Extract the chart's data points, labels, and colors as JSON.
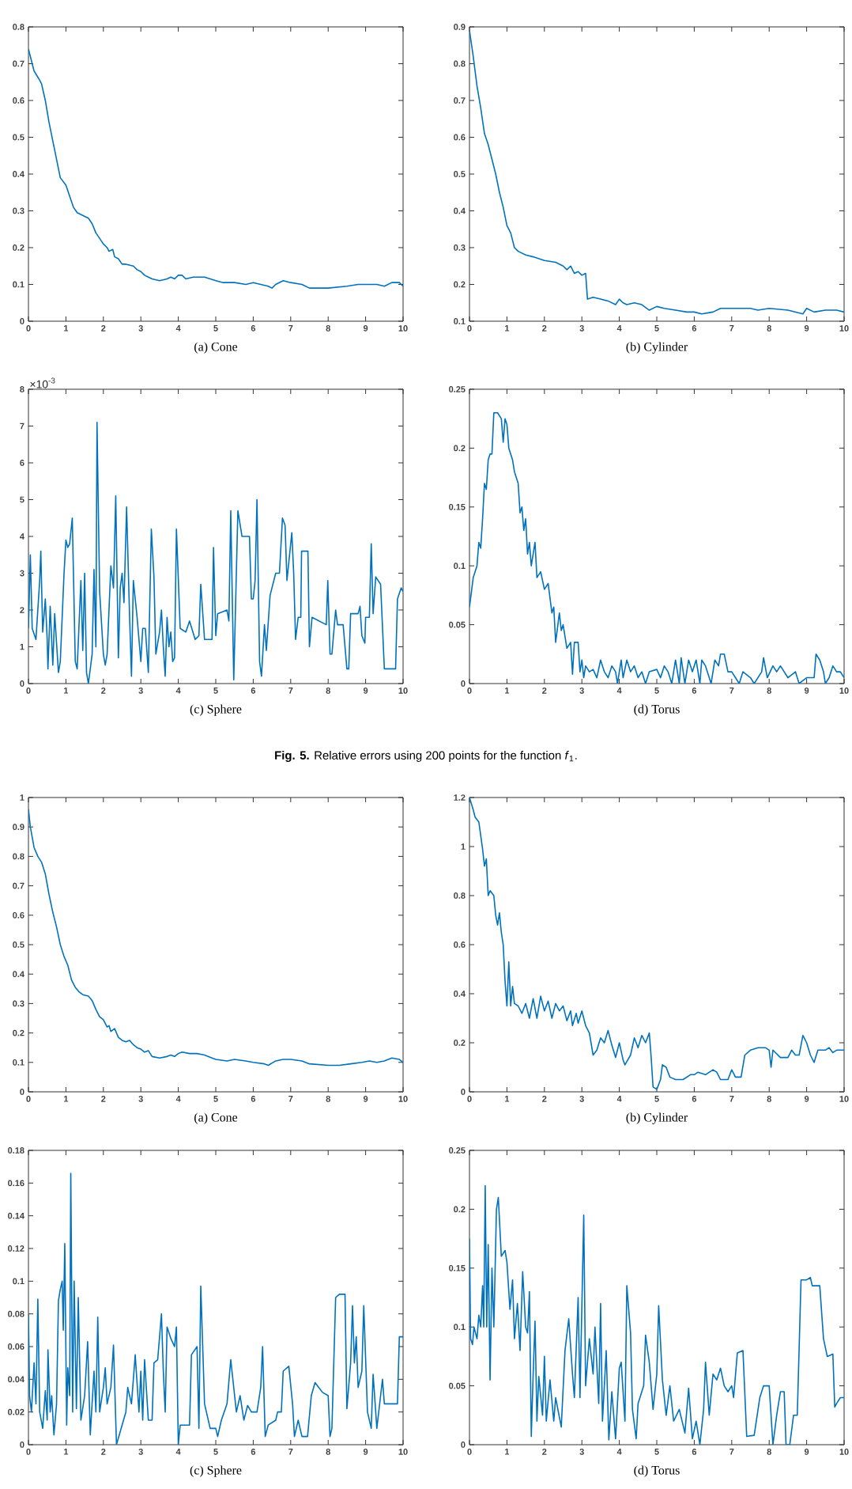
{
  "chart_data": [
    {
      "type": "line",
      "xlabel": "(a) Cone",
      "color": "#0072bd",
      "xlim": [
        0,
        10
      ],
      "ylim": [
        0,
        0.8
      ],
      "xticks": [
        0,
        1,
        2,
        3,
        4,
        5,
        6,
        7,
        8,
        9,
        10
      ],
      "yticks": [
        0,
        0.1,
        0.2,
        0.3,
        0.4,
        0.5,
        0.6,
        0.7,
        0.8
      ],
      "x": [
        0,
        0.05,
        0.15,
        0.3,
        0.35,
        0.45,
        0.55,
        0.65,
        0.75,
        0.85,
        1.0,
        1.1,
        1.2,
        1.3,
        1.4,
        1.5,
        1.6,
        1.7,
        1.8,
        1.9,
        2.0,
        2.1,
        2.15,
        2.25,
        2.3,
        2.4,
        2.5,
        2.6,
        2.8,
        2.9,
        3.0,
        3.1,
        3.2,
        3.3,
        3.5,
        3.7,
        3.8,
        3.9,
        4.0,
        4.1,
        4.2,
        4.4,
        4.7,
        5.0,
        5.2,
        5.5,
        5.8,
        6.0,
        6.2,
        6.4,
        6.5,
        6.6,
        6.8,
        7.0,
        7.3,
        7.5,
        8.0,
        8.5,
        8.8,
        9.0,
        9.3,
        9.5,
        9.7,
        9.9,
        10
      ],
      "values": [
        0.74,
        0.72,
        0.68,
        0.655,
        0.645,
        0.6,
        0.54,
        0.49,
        0.44,
        0.39,
        0.37,
        0.34,
        0.31,
        0.295,
        0.29,
        0.285,
        0.28,
        0.265,
        0.24,
        0.225,
        0.21,
        0.2,
        0.19,
        0.195,
        0.175,
        0.17,
        0.155,
        0.155,
        0.15,
        0.14,
        0.135,
        0.125,
        0.12,
        0.115,
        0.11,
        0.115,
        0.12,
        0.115,
        0.125,
        0.125,
        0.115,
        0.12,
        0.12,
        0.11,
        0.105,
        0.105,
        0.1,
        0.105,
        0.1,
        0.095,
        0.09,
        0.1,
        0.11,
        0.105,
        0.1,
        0.09,
        0.09,
        0.095,
        0.1,
        0.1,
        0.1,
        0.095,
        0.105,
        0.105,
        0.095
      ]
    },
    {
      "type": "line",
      "xlabel": "(b) Cylinder",
      "color": "#0072bd",
      "xlim": [
        0,
        10
      ],
      "ylim": [
        0.1,
        0.9
      ],
      "xticks": [
        0,
        1,
        2,
        3,
        4,
        5,
        6,
        7,
        8,
        9,
        10
      ],
      "yticks": [
        0.1,
        0.2,
        0.3,
        0.4,
        0.5,
        0.6,
        0.7,
        0.8,
        0.9
      ],
      "x": [
        0,
        0.1,
        0.2,
        0.3,
        0.4,
        0.5,
        0.6,
        0.7,
        0.8,
        0.9,
        1.0,
        1.1,
        1.2,
        1.3,
        1.5,
        1.7,
        2.0,
        2.3,
        2.5,
        2.6,
        2.7,
        2.8,
        2.9,
        3.0,
        3.1,
        3.15,
        3.3,
        3.5,
        3.7,
        3.9,
        4.0,
        4.1,
        4.2,
        4.4,
        4.6,
        4.8,
        5.0,
        5.2,
        5.5,
        5.8,
        6.0,
        6.2,
        6.5,
        6.7,
        7.0,
        7.5,
        7.7,
        8.0,
        8.5,
        8.9,
        9.0,
        9.2,
        9.5,
        9.8,
        10
      ],
      "values": [
        0.89,
        0.82,
        0.74,
        0.68,
        0.61,
        0.58,
        0.54,
        0.5,
        0.45,
        0.41,
        0.36,
        0.34,
        0.3,
        0.29,
        0.28,
        0.275,
        0.265,
        0.26,
        0.25,
        0.24,
        0.25,
        0.23,
        0.235,
        0.225,
        0.23,
        0.16,
        0.165,
        0.16,
        0.155,
        0.145,
        0.16,
        0.15,
        0.145,
        0.15,
        0.145,
        0.13,
        0.14,
        0.135,
        0.13,
        0.125,
        0.125,
        0.12,
        0.125,
        0.135,
        0.135,
        0.135,
        0.13,
        0.135,
        0.13,
        0.12,
        0.135,
        0.125,
        0.13,
        0.13,
        0.125
      ]
    },
    {
      "type": "line",
      "xlabel": "(c) Sphere",
      "color": "#0072bd",
      "xlim": [
        0,
        10
      ],
      "ylim": [
        0,
        8
      ],
      "xticks": [
        0,
        1,
        2,
        3,
        4,
        5,
        6,
        7,
        8,
        9,
        10
      ],
      "yticks": [
        0,
        1,
        2,
        3,
        4,
        5,
        6,
        7,
        8
      ],
      "annotations": [
        "×10$^{-3}$"
      ],
      "x": [
        0,
        0.05,
        0.1,
        0.2,
        0.3,
        0.33,
        0.38,
        0.45,
        0.5,
        0.52,
        0.58,
        0.65,
        0.7,
        0.8,
        0.85,
        0.95,
        1.0,
        1.05,
        1.1,
        1.17,
        1.25,
        1.3,
        1.4,
        1.45,
        1.5,
        1.55,
        1.6,
        1.7,
        1.75,
        1.8,
        1.83,
        1.9,
        2.0,
        2.05,
        2.1,
        2.2,
        2.27,
        2.33,
        2.4,
        2.45,
        2.5,
        2.55,
        2.62,
        2.7,
        2.75,
        2.8,
        2.9,
        3.0,
        3.05,
        3.12,
        3.2,
        3.28,
        3.35,
        3.4,
        3.5,
        3.55,
        3.6,
        3.65,
        3.7,
        3.75,
        3.8,
        3.85,
        3.9,
        3.95,
        4.05,
        4.2,
        4.3,
        4.45,
        4.55,
        4.6,
        4.7,
        4.9,
        4.94,
        5.0,
        5.05,
        5.3,
        5.35,
        5.4,
        5.48,
        5.59,
        5.7,
        5.9,
        5.95,
        6.0,
        6.05,
        6.1,
        6.17,
        6.22,
        6.3,
        6.35,
        6.45,
        6.6,
        6.7,
        6.78,
        6.85,
        6.9,
        7.03,
        7.08,
        7.13,
        7.2,
        7.27,
        7.29,
        7.46,
        7.5,
        7.57,
        7.95,
        7.99,
        8.05,
        8.1,
        8.2,
        8.25,
        8.4,
        8.5,
        8.55,
        8.6,
        8.8,
        8.85,
        8.9,
        8.98,
        9.0,
        9.1,
        9.15,
        9.2,
        9.27,
        9.4,
        9.5,
        9.8,
        9.85,
        9.95,
        10
      ],
      "values": [
        1.5,
        3.5,
        1.5,
        1.2,
        2.8,
        3.6,
        1.4,
        2.3,
        1.2,
        0.4,
        2.1,
        0.5,
        1.9,
        0.3,
        0.6,
        3.0,
        3.9,
        3.7,
        3.8,
        4.5,
        0.6,
        0.4,
        2.8,
        0.9,
        3.0,
        0.3,
        0.0,
        0.8,
        3.1,
        1.0,
        7.1,
        2.5,
        0.8,
        0.5,
        0.8,
        3.2,
        2.6,
        5.1,
        0.7,
        2.6,
        3.0,
        2.2,
        4.8,
        1.8,
        0.2,
        2.8,
        1.8,
        0.6,
        1.5,
        1.5,
        0.3,
        4.2,
        2.9,
        0.8,
        1.4,
        2.0,
        1.0,
        0.2,
        1.8,
        1.0,
        1.4,
        0.6,
        0.7,
        4.2,
        1.5,
        1.4,
        1.7,
        1.2,
        1.3,
        2.7,
        1.2,
        1.2,
        3.7,
        1.3,
        1.9,
        2.0,
        1.7,
        4.7,
        0.1,
        4.7,
        4.0,
        4.0,
        2.3,
        2.3,
        2.8,
        5.0,
        0.6,
        0.2,
        1.6,
        0.9,
        2.4,
        3.0,
        3.0,
        4.5,
        4.3,
        2.8,
        4.1,
        3.0,
        1.2,
        1.8,
        1.8,
        3.6,
        3.6,
        1.0,
        1.8,
        1.6,
        2.8,
        0.8,
        0.8,
        2.0,
        1.6,
        1.6,
        0.4,
        0.4,
        1.9,
        1.9,
        2.1,
        1.3,
        1.1,
        1.8,
        1.8,
        3.8,
        1.9,
        2.9,
        2.7,
        0.4,
        0.4,
        2.3,
        2.6,
        2.5
      ]
    },
    {
      "type": "line",
      "xlabel": "(d) Torus",
      "color": "#0072bd",
      "xlim": [
        0,
        10
      ],
      "ylim": [
        0,
        0.25
      ],
      "xticks": [
        0,
        1,
        2,
        3,
        4,
        5,
        6,
        7,
        8,
        9,
        10
      ],
      "yticks": [
        0,
        0.05,
        0.1,
        0.15,
        0.2,
        0.25
      ],
      "annotations": [
        "**Fig. 5.** Relative errors using 200 points for the function *f*$_{1}$."
      ],
      "x": [
        0,
        0.1,
        0.2,
        0.25,
        0.3,
        0.35,
        0.4,
        0.45,
        0.5,
        0.55,
        0.6,
        0.65,
        0.75,
        0.85,
        0.9,
        0.95,
        1.0,
        1.05,
        1.15,
        1.2,
        1.3,
        1.35,
        1.4,
        1.45,
        1.5,
        1.55,
        1.6,
        1.65,
        1.75,
        1.8,
        1.9,
        2.0,
        2.1,
        2.2,
        2.25,
        2.3,
        2.4,
        2.45,
        2.5,
        2.6,
        2.7,
        2.75,
        2.8,
        2.9,
        2.95,
        3.0,
        3.05,
        3.1,
        3.2,
        3.3,
        3.4,
        3.5,
        3.6,
        3.7,
        3.8,
        3.9,
        3.95,
        4.05,
        4.1,
        4.2,
        4.3,
        4.4,
        4.5,
        4.6,
        4.7,
        4.8,
        5.0,
        5.1,
        5.2,
        5.3,
        5.4,
        5.5,
        5.6,
        5.65,
        5.75,
        5.85,
        5.95,
        6.05,
        6.15,
        6.2,
        6.3,
        6.45,
        6.55,
        6.65,
        6.7,
        6.8,
        6.9,
        7.0,
        7.1,
        7.2,
        7.3,
        7.5,
        7.6,
        7.7,
        7.8,
        7.85,
        7.95,
        8.1,
        8.2,
        8.3,
        8.4,
        8.5,
        8.7,
        8.8,
        9.0,
        9.2,
        9.25,
        9.35,
        9.45,
        9.5,
        9.6,
        9.7,
        9.8,
        9.9,
        10
      ],
      "values": [
        0.065,
        0.09,
        0.1,
        0.12,
        0.115,
        0.14,
        0.17,
        0.165,
        0.19,
        0.195,
        0.195,
        0.23,
        0.23,
        0.225,
        0.205,
        0.225,
        0.22,
        0.2,
        0.19,
        0.18,
        0.17,
        0.145,
        0.15,
        0.13,
        0.14,
        0.11,
        0.12,
        0.1,
        0.12,
        0.09,
        0.095,
        0.08,
        0.085,
        0.06,
        0.065,
        0.035,
        0.06,
        0.045,
        0.05,
        0.03,
        0.035,
        0.008,
        0.035,
        0.035,
        0.01,
        0.02,
        0.005,
        0.015,
        0.01,
        0.012,
        0.005,
        0.02,
        0.01,
        0.005,
        0.015,
        0.01,
        0.0,
        0.02,
        0.005,
        0.02,
        0.01,
        0.015,
        0.005,
        0.01,
        0.0,
        0.01,
        0.012,
        0.005,
        0.015,
        0.01,
        0.0,
        0.02,
        0.0,
        0.022,
        0.0,
        0.02,
        0.01,
        0.02,
        0.0,
        0.02,
        0.015,
        0.0,
        0.02,
        0.015,
        0.025,
        0.025,
        0.01,
        0.01,
        0.005,
        0.0,
        0.01,
        0.005,
        0.0,
        0.005,
        0.01,
        0.022,
        0.005,
        0.015,
        0.01,
        0.015,
        0.01,
        0.005,
        0.01,
        0.0,
        0.005,
        0.005,
        0.025,
        0.02,
        0.01,
        0.0,
        0.005,
        0.015,
        0.01,
        0.01,
        0.005
      ]
    },
    {
      "type": "line",
      "xlabel": "(a) Cone",
      "color": "#0072bd",
      "xlim": [
        0,
        10
      ],
      "ylim": [
        0,
        1
      ],
      "xticks": [
        0,
        1,
        2,
        3,
        4,
        5,
        6,
        7,
        8,
        9,
        10
      ],
      "yticks": [
        0,
        0.1,
        0.2,
        0.3,
        0.4,
        0.5,
        0.6,
        0.7,
        0.8,
        0.9,
        1
      ],
      "x": [
        0,
        0.05,
        0.15,
        0.25,
        0.35,
        0.45,
        0.55,
        0.65,
        0.75,
        0.85,
        0.95,
        1.05,
        1.15,
        1.25,
        1.35,
        1.45,
        1.6,
        1.7,
        1.8,
        1.9,
        2.0,
        2.1,
        2.15,
        2.2,
        2.3,
        2.4,
        2.5,
        2.6,
        2.7,
        2.8,
        2.9,
        3.0,
        3.1,
        3.2,
        3.3,
        3.5,
        3.7,
        3.8,
        3.9,
        4.0,
        4.1,
        4.3,
        4.5,
        4.7,
        4.9,
        5.0,
        5.3,
        5.5,
        5.8,
        6.0,
        6.3,
        6.4,
        6.6,
        6.8,
        7.0,
        7.3,
        7.5,
        8.0,
        8.3,
        8.6,
        8.9,
        9.1,
        9.3,
        9.5,
        9.7,
        9.9,
        10
      ],
      "values": [
        0.96,
        0.9,
        0.83,
        0.8,
        0.78,
        0.74,
        0.67,
        0.61,
        0.56,
        0.5,
        0.46,
        0.43,
        0.38,
        0.355,
        0.34,
        0.33,
        0.325,
        0.31,
        0.28,
        0.255,
        0.245,
        0.22,
        0.225,
        0.205,
        0.215,
        0.185,
        0.175,
        0.17,
        0.175,
        0.16,
        0.15,
        0.145,
        0.135,
        0.14,
        0.12,
        0.115,
        0.12,
        0.125,
        0.12,
        0.13,
        0.135,
        0.13,
        0.13,
        0.125,
        0.115,
        0.11,
        0.105,
        0.11,
        0.105,
        0.1,
        0.095,
        0.09,
        0.105,
        0.11,
        0.11,
        0.105,
        0.095,
        0.09,
        0.09,
        0.095,
        0.1,
        0.105,
        0.1,
        0.105,
        0.115,
        0.11,
        0.1
      ]
    },
    {
      "type": "line",
      "xlabel": "(b) Cylinder",
      "color": "#0072bd",
      "xlim": [
        0,
        10
      ],
      "ylim": [
        0,
        1.2
      ],
      "xticks": [
        0,
        1,
        2,
        3,
        4,
        5,
        6,
        7,
        8,
        9,
        10
      ],
      "yticks": [
        0,
        0.2,
        0.4,
        0.6,
        0.8,
        1,
        1.2
      ],
      "x": [
        0,
        0.1,
        0.15,
        0.25,
        0.35,
        0.4,
        0.45,
        0.5,
        0.55,
        0.65,
        0.7,
        0.75,
        0.8,
        0.85,
        0.9,
        0.95,
        1.0,
        1.05,
        1.1,
        1.15,
        1.2,
        1.3,
        1.4,
        1.5,
        1.6,
        1.7,
        1.8,
        1.9,
        2.0,
        2.1,
        2.2,
        2.3,
        2.4,
        2.5,
        2.6,
        2.7,
        2.75,
        2.85,
        2.9,
        3.0,
        3.1,
        3.2,
        3.3,
        3.4,
        3.5,
        3.6,
        3.7,
        3.8,
        3.9,
        4.0,
        4.1,
        4.15,
        4.3,
        4.4,
        4.5,
        4.6,
        4.7,
        4.8,
        4.85,
        4.9,
        5.0,
        5.1,
        5.15,
        5.25,
        5.35,
        5.5,
        5.7,
        5.9,
        6.0,
        6.1,
        6.3,
        6.5,
        6.6,
        6.7,
        6.9,
        7.0,
        7.1,
        7.25,
        7.35,
        7.5,
        7.7,
        7.9,
        8.0,
        8.05,
        8.1,
        8.3,
        8.5,
        8.6,
        8.7,
        8.8,
        8.9,
        9.0,
        9.1,
        9.2,
        9.3,
        9.5,
        9.6,
        9.7,
        9.8,
        10
      ],
      "values": [
        1.2,
        1.15,
        1.12,
        1.1,
        0.99,
        0.92,
        0.95,
        0.8,
        0.82,
        0.8,
        0.72,
        0.68,
        0.73,
        0.65,
        0.6,
        0.45,
        0.35,
        0.53,
        0.35,
        0.43,
        0.36,
        0.35,
        0.32,
        0.36,
        0.3,
        0.38,
        0.3,
        0.39,
        0.33,
        0.37,
        0.3,
        0.36,
        0.33,
        0.35,
        0.29,
        0.33,
        0.27,
        0.32,
        0.28,
        0.33,
        0.27,
        0.24,
        0.15,
        0.17,
        0.22,
        0.2,
        0.25,
        0.19,
        0.14,
        0.2,
        0.13,
        0.11,
        0.15,
        0.22,
        0.18,
        0.23,
        0.2,
        0.24,
        0.14,
        0.02,
        0.01,
        0.05,
        0.11,
        0.1,
        0.06,
        0.05,
        0.05,
        0.07,
        0.07,
        0.08,
        0.07,
        0.09,
        0.08,
        0.05,
        0.05,
        0.09,
        0.06,
        0.06,
        0.15,
        0.17,
        0.18,
        0.18,
        0.17,
        0.1,
        0.17,
        0.14,
        0.14,
        0.17,
        0.15,
        0.15,
        0.23,
        0.2,
        0.15,
        0.12,
        0.17,
        0.17,
        0.18,
        0.16,
        0.17,
        0.17
      ]
    },
    {
      "type": "line",
      "xlabel": "(c) Sphere",
      "color": "#0072bd",
      "xlim": [
        0,
        10
      ],
      "ylim": [
        0,
        0.18
      ],
      "xticks": [
        0,
        1,
        2,
        3,
        4,
        5,
        6,
        7,
        8,
        9,
        10
      ],
      "yticks": [
        0,
        0.02,
        0.04,
        0.06,
        0.08,
        0.1,
        0.12,
        0.14,
        0.16,
        0.18
      ],
      "x": [
        0,
        0.03,
        0.08,
        0.15,
        0.2,
        0.25,
        0.3,
        0.38,
        0.45,
        0.5,
        0.52,
        0.58,
        0.62,
        0.68,
        0.75,
        0.8,
        0.85,
        0.9,
        0.93,
        0.97,
        1.02,
        1.05,
        1.1,
        1.13,
        1.18,
        1.22,
        1.28,
        1.33,
        1.4,
        1.5,
        1.58,
        1.65,
        1.75,
        1.8,
        1.85,
        1.9,
        2.0,
        2.05,
        2.1,
        2.2,
        2.27,
        2.35,
        2.5,
        2.6,
        2.65,
        2.75,
        2.85,
        2.95,
        3.0,
        3.05,
        3.1,
        3.2,
        3.3,
        3.35,
        3.45,
        3.55,
        3.6,
        3.65,
        3.7,
        3.8,
        3.9,
        3.95,
        4.0,
        4.05,
        4.3,
        4.35,
        4.5,
        4.55,
        4.6,
        4.7,
        4.85,
        5.0,
        5.05,
        5.15,
        5.3,
        5.4,
        5.55,
        5.65,
        5.75,
        5.85,
        5.95,
        6.1,
        6.2,
        6.25,
        6.32,
        6.4,
        6.6,
        6.65,
        6.75,
        6.8,
        6.95,
        7.05,
        7.1,
        7.2,
        7.3,
        7.45,
        7.55,
        7.65,
        7.75,
        7.85,
        8.0,
        8.05,
        8.1,
        8.2,
        8.3,
        8.45,
        8.5,
        8.6,
        8.65,
        8.7,
        8.75,
        8.8,
        8.9,
        8.95,
        9.05,
        9.15,
        9.2,
        9.3,
        9.45,
        9.5,
        9.85,
        9.9,
        10
      ],
      "values": [
        0.08,
        0.03,
        0.02,
        0.05,
        0.025,
        0.089,
        0.02,
        0.01,
        0.033,
        0.015,
        0.058,
        0.02,
        0.03,
        0.006,
        0.025,
        0.088,
        0.095,
        0.1,
        0.07,
        0.123,
        0.012,
        0.047,
        0.03,
        0.166,
        0.02,
        0.1,
        0.022,
        0.09,
        0.015,
        0.03,
        0.063,
        0.006,
        0.045,
        0.02,
        0.078,
        0.02,
        0.035,
        0.047,
        0.025,
        0.035,
        0.061,
        0.0,
        0.012,
        0.02,
        0.035,
        0.025,
        0.055,
        0.02,
        0.045,
        0.015,
        0.052,
        0.015,
        0.015,
        0.05,
        0.052,
        0.08,
        0.045,
        0.02,
        0.072,
        0.065,
        0.06,
        0.072,
        0.0,
        0.012,
        0.012,
        0.055,
        0.06,
        0.01,
        0.097,
        0.025,
        0.01,
        0.01,
        0.005,
        0.015,
        0.025,
        0.052,
        0.02,
        0.03,
        0.015,
        0.024,
        0.02,
        0.02,
        0.035,
        0.06,
        0.005,
        0.012,
        0.015,
        0.02,
        0.02,
        0.045,
        0.048,
        0.025,
        0.005,
        0.015,
        0.005,
        0.005,
        0.03,
        0.038,
        0.035,
        0.032,
        0.03,
        0.005,
        0.01,
        0.09,
        0.092,
        0.092,
        0.022,
        0.05,
        0.085,
        0.05,
        0.066,
        0.035,
        0.045,
        0.085,
        0.02,
        0.01,
        0.043,
        0.01,
        0.04,
        0.025,
        0.025,
        0.066,
        0.066
      ]
    },
    {
      "type": "line",
      "xlabel": "(d) Torus",
      "color": "#0072bd",
      "xlim": [
        0,
        10
      ],
      "ylim": [
        0,
        0.25
      ],
      "xticks": [
        0,
        1,
        2,
        3,
        4,
        5,
        6,
        7,
        8,
        9,
        10
      ],
      "yticks": [
        0,
        0.05,
        0.1,
        0.15,
        0.2,
        0.25
      ],
      "x": [
        0,
        0.03,
        0.08,
        0.12,
        0.2,
        0.25,
        0.3,
        0.35,
        0.38,
        0.42,
        0.46,
        0.5,
        0.55,
        0.6,
        0.65,
        0.72,
        0.77,
        0.85,
        0.95,
        1.0,
        1.08,
        1.15,
        1.2,
        1.28,
        1.35,
        1.42,
        1.5,
        1.55,
        1.6,
        1.65,
        1.7,
        1.75,
        1.8,
        1.85,
        1.95,
        2.0,
        2.05,
        2.15,
        2.25,
        2.3,
        2.45,
        2.55,
        2.65,
        2.75,
        2.8,
        2.9,
        2.95,
        3.05,
        3.1,
        3.2,
        3.3,
        3.35,
        3.45,
        3.5,
        3.55,
        3.65,
        3.72,
        3.8,
        3.9,
        4.0,
        4.05,
        4.15,
        4.2,
        4.3,
        4.35,
        4.45,
        4.5,
        4.65,
        4.7,
        4.8,
        4.9,
        5.0,
        5.05,
        5.15,
        5.25,
        5.35,
        5.45,
        5.6,
        5.75,
        5.85,
        5.95,
        6.05,
        6.15,
        6.25,
        6.3,
        6.4,
        6.5,
        6.6,
        6.7,
        6.8,
        6.9,
        7.0,
        7.05,
        7.15,
        7.3,
        7.4,
        7.6,
        7.75,
        7.85,
        8.0,
        8.1,
        8.2,
        8.3,
        8.4,
        8.45,
        8.55,
        8.65,
        8.75,
        8.85,
        9.0,
        9.1,
        9.15,
        9.35,
        9.45,
        9.55,
        9.7,
        9.75,
        9.8,
        9.9,
        10
      ],
      "values": [
        0.175,
        0.09,
        0.085,
        0.1,
        0.09,
        0.11,
        0.1,
        0.135,
        0.1,
        0.22,
        0.1,
        0.17,
        0.055,
        0.15,
        0.1,
        0.2,
        0.21,
        0.16,
        0.165,
        0.155,
        0.115,
        0.14,
        0.09,
        0.12,
        0.08,
        0.147,
        0.1,
        0.095,
        0.13,
        0.007,
        0.06,
        0.105,
        0.02,
        0.058,
        0.025,
        0.075,
        0.02,
        0.055,
        0.02,
        0.04,
        0.015,
        0.08,
        0.107,
        0.06,
        0.04,
        0.125,
        0.04,
        0.195,
        0.05,
        0.09,
        0.06,
        0.1,
        0.035,
        0.12,
        0.02,
        0.08,
        0.004,
        0.045,
        0.005,
        0.065,
        0.07,
        0.02,
        0.135,
        0.095,
        0.03,
        0.005,
        0.035,
        0.05,
        0.093,
        0.07,
        0.03,
        0.06,
        0.118,
        0.055,
        0.025,
        0.05,
        0.02,
        0.03,
        0.01,
        0.048,
        0.005,
        0.02,
        0.0,
        0.03,
        0.07,
        0.025,
        0.06,
        0.055,
        0.065,
        0.05,
        0.045,
        0.05,
        0.04,
        0.078,
        0.08,
        0.007,
        0.008,
        0.04,
        0.05,
        0.05,
        0.0,
        0.025,
        0.045,
        0.045,
        0.0,
        0.0,
        0.025,
        0.025,
        0.14,
        0.14,
        0.142,
        0.135,
        0.135,
        0.09,
        0.075,
        0.077,
        0.032,
        0.035,
        0.04,
        0.04
      ]
    }
  ]
}
